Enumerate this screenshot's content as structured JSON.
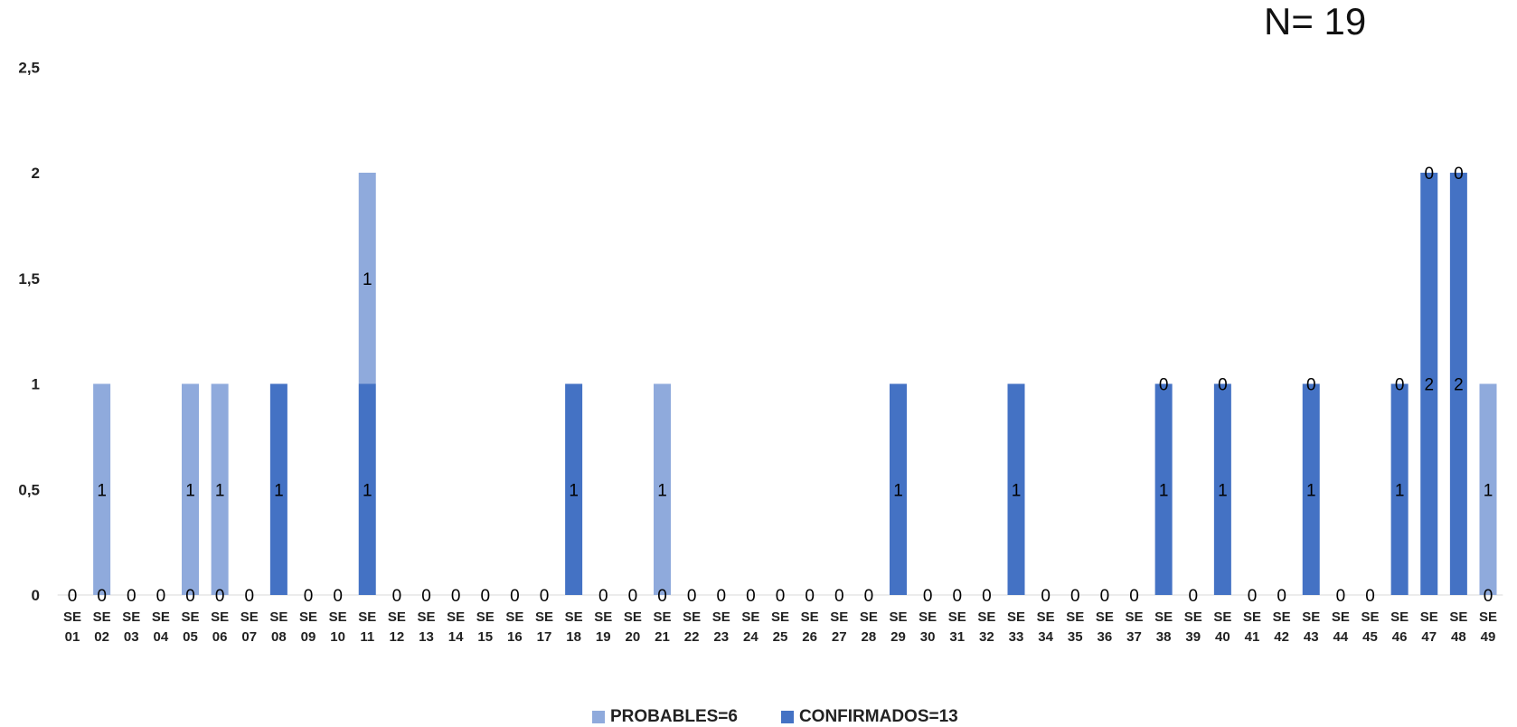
{
  "annotation": "N= 19",
  "chart_data": {
    "type": "bar",
    "stacked": true,
    "categories": [
      "SE 01",
      "SE 02",
      "SE 03",
      "SE 04",
      "SE 05",
      "SE 06",
      "SE 07",
      "SE 08",
      "SE 09",
      "SE 10",
      "SE 11",
      "SE 12",
      "SE 13",
      "SE 14",
      "SE 15",
      "SE 16",
      "SE 17",
      "SE 18",
      "SE 19",
      "SE 20",
      "SE 21",
      "SE 22",
      "SE 23",
      "SE 24",
      "SE 25",
      "SE 26",
      "SE 27",
      "SE 28",
      "SE 29",
      "SE 30",
      "SE 31",
      "SE 32",
      "SE 33",
      "SE 34",
      "SE 35",
      "SE 36",
      "SE 37",
      "SE 38",
      "SE 39",
      "SE 40",
      "SE 41",
      "SE 42",
      "SE 43",
      "SE 44",
      "SE 45",
      "SE 46",
      "SE 47",
      "SE 48",
      "SE 49"
    ],
    "series": [
      {
        "name": "CONFIRMADOS=13",
        "color": "#4472C4",
        "values": [
          0,
          0,
          0,
          0,
          0,
          0,
          0,
          1,
          0,
          0,
          1,
          0,
          0,
          0,
          0,
          0,
          0,
          1,
          0,
          0,
          0,
          0,
          0,
          0,
          0,
          0,
          0,
          0,
          1,
          0,
          0,
          0,
          1,
          0,
          0,
          0,
          0,
          1,
          0,
          1,
          0,
          0,
          1,
          0,
          0,
          1,
          2,
          2,
          0
        ]
      },
      {
        "name": "PROBABLES=6",
        "color": "#8FAADC",
        "values": [
          0,
          1,
          0,
          0,
          1,
          1,
          0,
          0,
          0,
          0,
          1,
          0,
          0,
          0,
          0,
          0,
          0,
          0,
          0,
          0,
          1,
          0,
          0,
          0,
          0,
          0,
          0,
          0,
          0,
          0,
          0,
          0,
          0,
          0,
          0,
          0,
          0,
          0,
          0,
          0,
          0,
          0,
          0,
          0,
          0,
          0,
          0,
          0,
          1
        ]
      }
    ],
    "confirmados_labels": [
      null,
      "0",
      null,
      null,
      "0",
      "0",
      null,
      "1",
      null,
      null,
      "1",
      null,
      null,
      null,
      null,
      null,
      null,
      "1",
      null,
      null,
      "0",
      null,
      null,
      null,
      null,
      null,
      null,
      null,
      "1",
      null,
      null,
      null,
      "1",
      null,
      null,
      null,
      null,
      "1",
      null,
      "1",
      null,
      null,
      "1",
      null,
      null,
      "1",
      "2",
      "2",
      "0"
    ],
    "probables_labels": [
      "0",
      "1",
      "0",
      "0",
      "1",
      "1",
      "0",
      null,
      "0",
      "0",
      "1",
      "0",
      "0",
      "0",
      "0",
      "0",
      "0",
      null,
      "0",
      "0",
      "1",
      "0",
      "0",
      "0",
      "0",
      "0",
      "0",
      "0",
      null,
      "0",
      "0",
      "0",
      null,
      "0",
      "0",
      "0",
      "0",
      "0",
      "0",
      "0",
      "0",
      "0",
      "0",
      "0",
      "0",
      "0",
      "0",
      "0",
      "1"
    ],
    "y_ticks": [
      "0",
      "0,5",
      "1",
      "1,5",
      "2",
      "2,5"
    ],
    "ylim": [
      0,
      2.5
    ],
    "grid": false,
    "legend_position": "bottom",
    "legend": [
      {
        "label": "PROBABLES=6",
        "color": "#8FAADC"
      },
      {
        "label": "CONFIRMADOS=13",
        "color": "#4472C4"
      }
    ]
  }
}
